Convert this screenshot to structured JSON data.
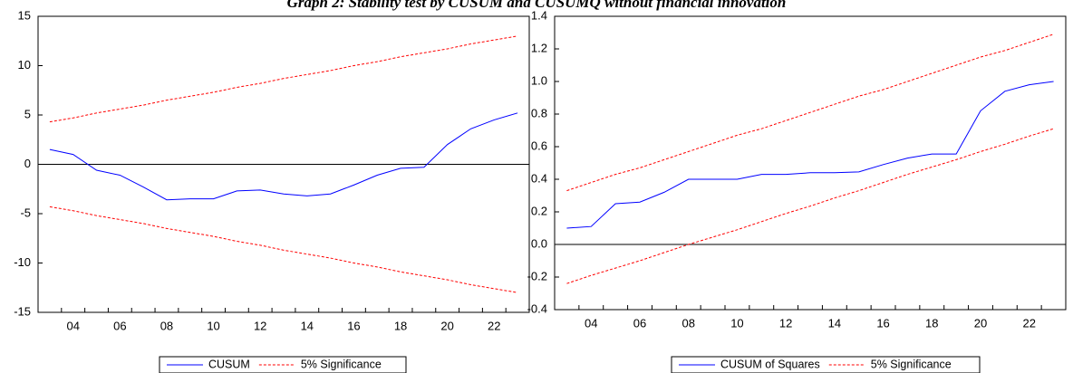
{
  "chart_data": [
    {
      "type": "line",
      "title": "Graph 2: Stability test by CUSUM and CUSUMQ without financial innovation",
      "categories": [
        null,
        "04",
        null,
        "06",
        null,
        "08",
        null,
        "10",
        null,
        "12",
        null,
        "14",
        null,
        "16",
        null,
        "18",
        null,
        "20",
        null,
        "22",
        null
      ],
      "series": [
        {
          "name": "CUSUM",
          "color": "#0000ff",
          "values": [
            1.5,
            1.0,
            -0.6,
            -1.1,
            -2.3,
            -3.6,
            -3.5,
            -3.5,
            -2.7,
            -2.6,
            -3.0,
            -3.2,
            -3.0,
            -2.1,
            -1.1,
            -0.4,
            -0.3,
            2.0,
            3.6,
            4.5,
            5.2
          ]
        },
        {
          "name": "5% Significance",
          "color": "#ff0000",
          "dashed": true,
          "values": [
            4.3,
            4.7,
            5.2,
            5.6,
            6.0,
            6.5,
            6.9,
            7.3,
            7.8,
            8.2,
            8.7,
            9.1,
            9.5,
            10.0,
            10.4,
            10.9,
            11.3,
            11.7,
            12.2,
            12.6,
            13.0
          ],
          "lower_values": [
            -4.3,
            -4.7,
            -5.2,
            -5.6,
            -6.0,
            -6.5,
            -6.9,
            -7.3,
            -7.8,
            -8.2,
            -8.7,
            -9.1,
            -9.5,
            -10.0,
            -10.4,
            -10.9,
            -11.3,
            -11.7,
            -12.2,
            -12.6,
            -13.0
          ]
        }
      ],
      "ylim": [
        -15,
        15
      ],
      "yticks": [
        -15,
        -10,
        -5,
        0,
        5,
        10,
        15
      ],
      "zero_line": true
    },
    {
      "type": "line",
      "categories": [
        null,
        "04",
        null,
        "06",
        null,
        "08",
        null,
        "10",
        null,
        "12",
        null,
        "14",
        null,
        "16",
        null,
        "18",
        null,
        "20",
        null,
        "22",
        null
      ],
      "series": [
        {
          "name": "CUSUM of Squares",
          "color": "#0000ff",
          "values": [
            0.1,
            0.11,
            0.25,
            0.26,
            0.32,
            0.4,
            0.4,
            0.4,
            0.43,
            0.43,
            0.44,
            0.44,
            0.445,
            0.49,
            0.53,
            0.555,
            0.555,
            0.82,
            0.94,
            0.98,
            1.0
          ]
        },
        {
          "name": "5% Significance",
          "color": "#ff0000",
          "dashed": true,
          "values": [
            0.33,
            0.38,
            0.43,
            0.47,
            0.52,
            0.57,
            0.62,
            0.67,
            0.71,
            0.76,
            0.81,
            0.86,
            0.91,
            0.95,
            1.0,
            1.05,
            1.1,
            1.15,
            1.19,
            1.24,
            1.29
          ],
          "lower_values": [
            -0.24,
            -0.19,
            -0.145,
            -0.1,
            -0.05,
            0.0,
            0.045,
            0.09,
            0.14,
            0.19,
            0.235,
            0.285,
            0.33,
            0.38,
            0.43,
            0.475,
            0.52,
            0.57,
            0.615,
            0.665,
            0.71
          ]
        }
      ],
      "ylim": [
        -0.4,
        1.4
      ],
      "yticks": [
        -0.4,
        -0.2,
        {
          "value": 0,
          "label": "0.0"
        },
        0.2,
        0.4,
        0.6,
        0.8,
        {
          "value": 1,
          "label": "1.0"
        },
        1.2,
        1.4
      ],
      "zero_line": true
    }
  ]
}
